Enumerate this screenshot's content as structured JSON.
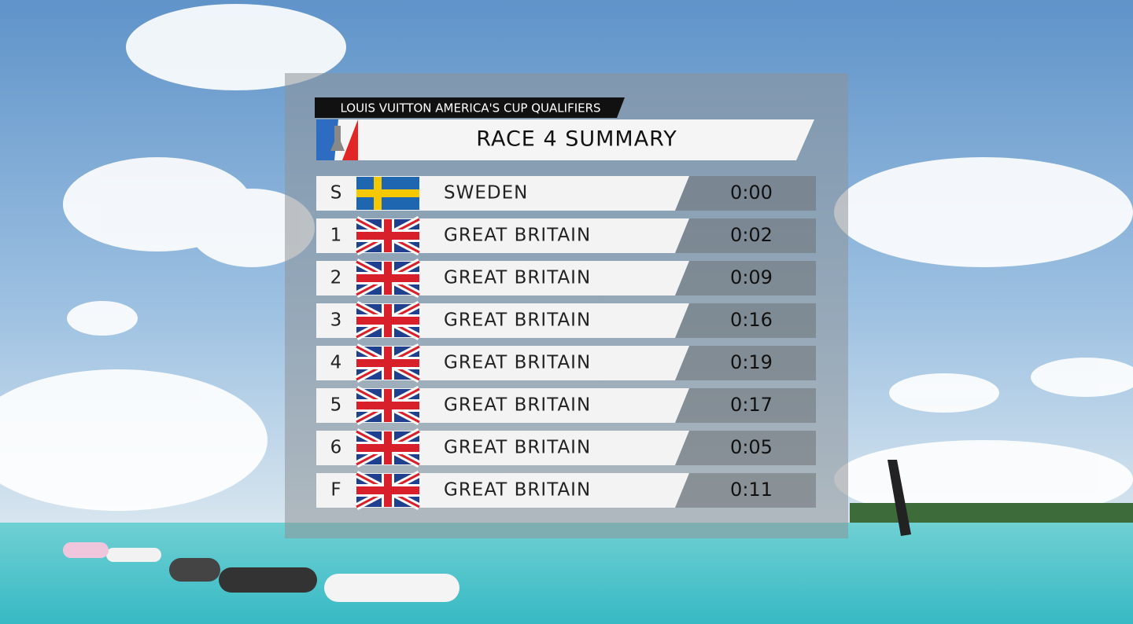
{
  "header": {
    "series": "LOUIS VUITTON AMERICA'S CUP QUALIFIERS",
    "title": "RACE 4 SUMMARY"
  },
  "table": {
    "rows": [
      {
        "leg": "S",
        "team": "SWEDEN",
        "time": "0:00"
      },
      {
        "leg": "1",
        "team": "GREAT BRITAIN",
        "time": "0:02"
      },
      {
        "leg": "2",
        "team": "GREAT BRITAIN",
        "time": "0:09"
      },
      {
        "leg": "3",
        "team": "GREAT BRITAIN",
        "time": "0:16"
      },
      {
        "leg": "4",
        "team": "GREAT BRITAIN",
        "time": "0:19"
      },
      {
        "leg": "5",
        "team": "GREAT BRITAIN",
        "time": "0:17"
      },
      {
        "leg": "6",
        "team": "GREAT BRITAIN",
        "time": "0:05"
      },
      {
        "leg": "F",
        "team": "GREAT BRITAIN",
        "time": "0:11"
      }
    ]
  }
}
